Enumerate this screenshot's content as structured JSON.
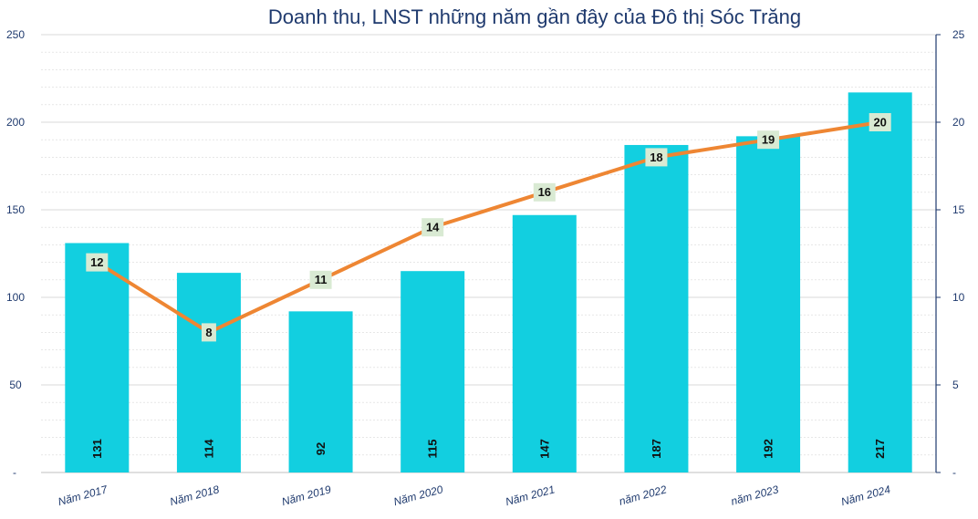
{
  "chart_data": {
    "type": "bar",
    "title": "Doanh thu, LNST những năm gần đây của Đô thị Sóc Trăng",
    "categories": [
      "Năm 2017",
      "Năm 2018",
      "Năm 2019",
      "Năm 2020",
      "Năm 2021",
      "năm 2022",
      "năm 2023",
      "Năm 2024"
    ],
    "series": [
      {
        "type": "bar",
        "axis": "left",
        "values": [
          131,
          114,
          92,
          115,
          147,
          187,
          192,
          217
        ],
        "color": "#12cfe0"
      },
      {
        "type": "line",
        "axis": "right",
        "values": [
          12,
          8,
          11,
          14,
          16,
          18,
          19,
          20
        ],
        "color": "#ee8633",
        "label_bg": "#d9ead3"
      }
    ],
    "y_left": {
      "ylim": [
        0,
        250
      ],
      "ticks": [
        "-",
        "50",
        "100",
        "150",
        "200",
        "250"
      ]
    },
    "y_right": {
      "ylim": [
        0,
        25
      ],
      "ticks": [
        "-",
        "5",
        "10",
        "15",
        "20",
        "25"
      ]
    },
    "grid": true,
    "gridline_color": "#d9d9d9",
    "text_color": "#1f3a6e"
  }
}
